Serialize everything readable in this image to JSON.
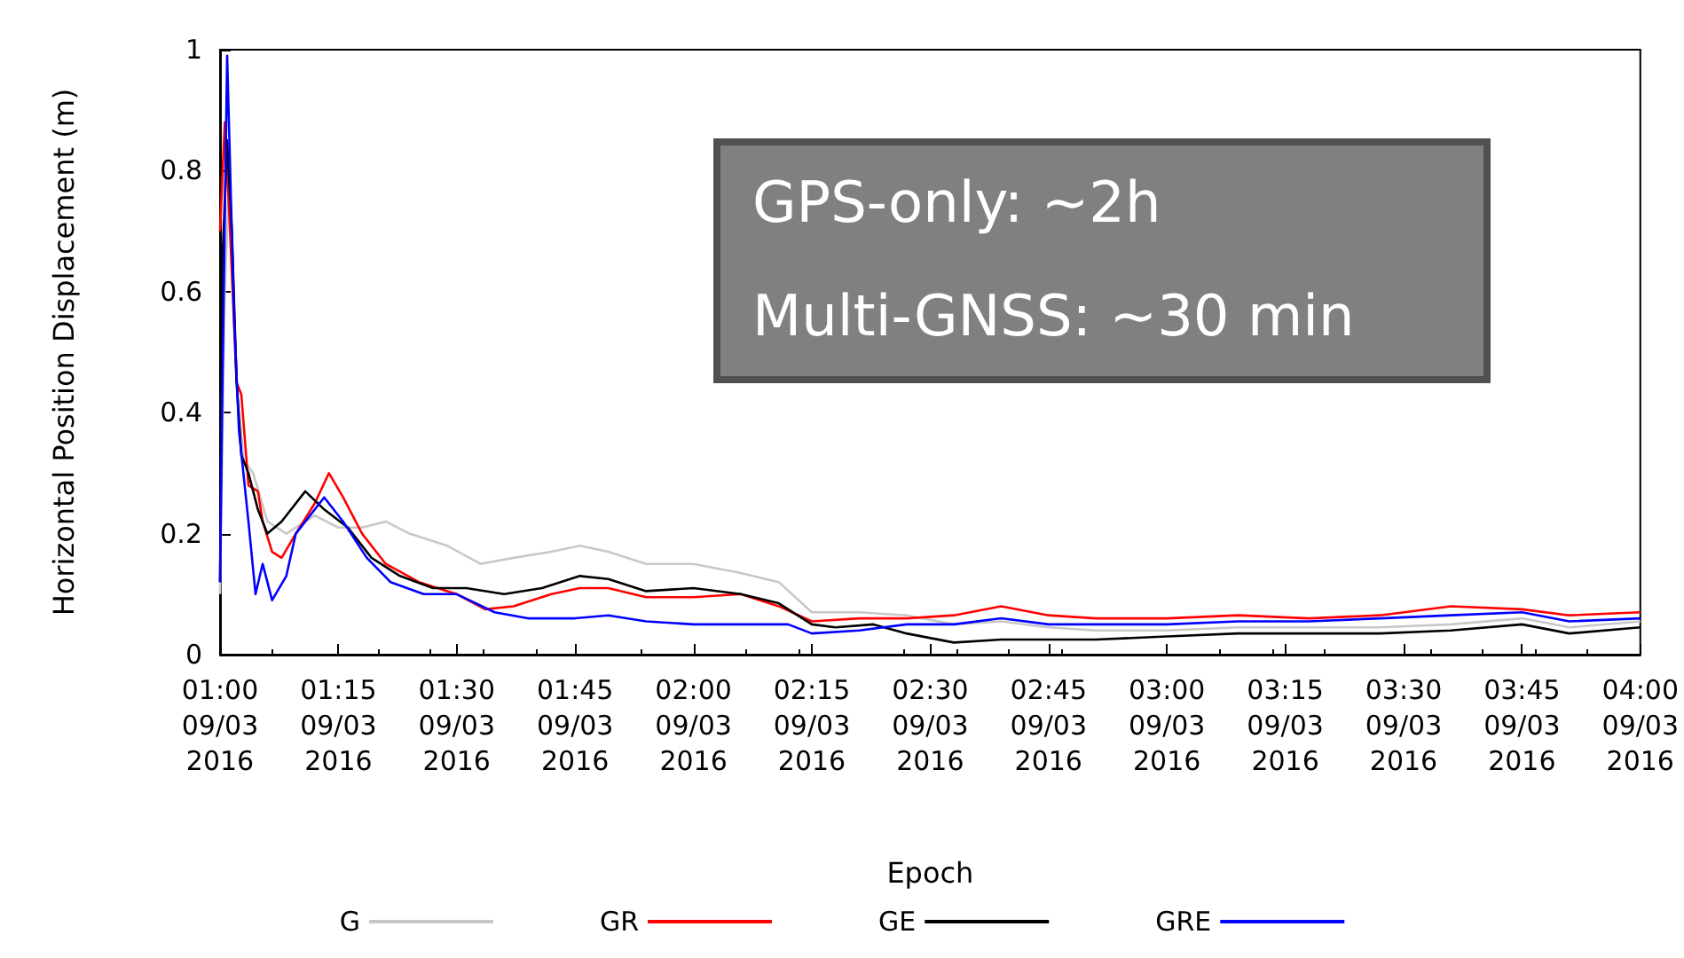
{
  "chart_data": {
    "type": "line",
    "xlabel": "Epoch",
    "ylabel": "Horizontal Position Displacement (m)",
    "xlim": [
      "2016-03-09T01:00",
      "2016-03-09T04:00"
    ],
    "ylim": [
      0,
      1
    ],
    "xticks": [
      {
        "value": "2016-03-09T01:00",
        "label": "01:00\n09/03\n2016"
      },
      {
        "value": "2016-03-09T01:15",
        "label": "01:15\n09/03\n2016"
      },
      {
        "value": "2016-03-09T01:30",
        "label": "01:30\n09/03\n2016"
      },
      {
        "value": "2016-03-09T01:45",
        "label": "01:45\n09/03\n2016"
      },
      {
        "value": "2016-03-09T02:00",
        "label": "02:00\n09/03\n2016"
      },
      {
        "value": "2016-03-09T02:15",
        "label": "02:15\n09/03\n2016"
      },
      {
        "value": "2016-03-09T02:30",
        "label": "02:30\n09/03\n2016"
      },
      {
        "value": "2016-03-09T02:45",
        "label": "02:45\n09/03\n2016"
      },
      {
        "value": "2016-03-09T03:00",
        "label": "03:00\n09/03\n2016"
      },
      {
        "value": "2016-03-09T03:15",
        "label": "03:15\n09/03\n2016"
      },
      {
        "value": "2016-03-09T03:30",
        "label": "03:30\n09/03\n2016"
      },
      {
        "value": "2016-03-09T03:45",
        "label": "03:45\n09/03\n2016"
      },
      {
        "value": "2016-03-09T04:00",
        "label": "04:00\n09/03\n2016"
      }
    ],
    "yticks": [
      0,
      0.2,
      0.4,
      0.6,
      0.8,
      1
    ],
    "grid": false,
    "legend": "bottom",
    "marker": "none",
    "line_style": "solid",
    "annotations": [
      "GPS-only: ~2h",
      "Multi-GNSS: ~30 min"
    ],
    "series": [
      {
        "name": "G",
        "color": "#c8c8c8",
        "x": [
          "2016-03-09T01:00:00",
          "2016-03-09T01:00:36",
          "2016-03-09T01:01:12",
          "2016-03-09T01:02:06",
          "2016-03-09T01:03:00",
          "2016-03-09T01:04:12",
          "2016-03-09T01:06:00",
          "2016-03-09T01:08:24",
          "2016-03-09T01:12:00",
          "2016-03-09T01:15:00",
          "2016-03-09T01:18:00",
          "2016-03-09T01:21:00",
          "2016-03-09T01:24:00",
          "2016-03-09T01:28:48",
          "2016-03-09T01:33:00",
          "2016-03-09T01:37:12",
          "2016-03-09T01:42:00",
          "2016-03-09T01:45:36",
          "2016-03-09T01:49:12",
          "2016-03-09T01:54:00",
          "2016-03-09T02:00:00",
          "2016-03-09T02:06:00",
          "2016-03-09T02:10:48",
          "2016-03-09T02:15:00",
          "2016-03-09T02:21:00",
          "2016-03-09T02:27:00",
          "2016-03-09T02:33:00",
          "2016-03-09T02:39:00",
          "2016-03-09T02:45:00",
          "2016-03-09T02:51:00",
          "2016-03-09T03:00:00",
          "2016-03-09T03:09:00",
          "2016-03-09T03:18:00",
          "2016-03-09T03:27:00",
          "2016-03-09T03:36:00",
          "2016-03-09T03:45:00",
          "2016-03-09T03:51:00",
          "2016-03-09T04:00:00"
        ],
        "values": [
          0.1,
          0.6,
          0.8,
          0.45,
          0.32,
          0.3,
          0.22,
          0.2,
          0.23,
          0.21,
          0.21,
          0.22,
          0.2,
          0.18,
          0.15,
          0.16,
          0.17,
          0.18,
          0.17,
          0.15,
          0.15,
          0.135,
          0.12,
          0.07,
          0.07,
          0.065,
          0.05,
          0.055,
          0.045,
          0.04,
          0.04,
          0.045,
          0.045,
          0.045,
          0.05,
          0.06,
          0.045,
          0.055
        ]
      },
      {
        "name": "GR",
        "color": "#ff0000",
        "x": [
          "2016-03-09T01:00:00",
          "2016-03-09T01:00:36",
          "2016-03-09T01:01:12",
          "2016-03-09T01:02:06",
          "2016-03-09T01:02:42",
          "2016-03-09T01:03:36",
          "2016-03-09T01:04:48",
          "2016-03-09T01:05:24",
          "2016-03-09T01:06:36",
          "2016-03-09T01:07:48",
          "2016-03-09T01:09:36",
          "2016-03-09T01:12:00",
          "2016-03-09T01:13:48",
          "2016-03-09T01:15:36",
          "2016-03-09T01:18:00",
          "2016-03-09T01:21:00",
          "2016-03-09T01:25:12",
          "2016-03-09T01:30:00",
          "2016-03-09T01:33:36",
          "2016-03-09T01:37:12",
          "2016-03-09T01:42:00",
          "2016-03-09T01:45:36",
          "2016-03-09T01:49:12",
          "2016-03-09T01:54:00",
          "2016-03-09T02:00:00",
          "2016-03-09T02:06:00",
          "2016-03-09T02:10:48",
          "2016-03-09T02:15:00",
          "2016-03-09T02:21:00",
          "2016-03-09T02:27:00",
          "2016-03-09T02:33:00",
          "2016-03-09T02:39:00",
          "2016-03-09T02:45:00",
          "2016-03-09T02:51:00",
          "2016-03-09T03:00:00",
          "2016-03-09T03:09:00",
          "2016-03-09T03:18:00",
          "2016-03-09T03:27:00",
          "2016-03-09T03:36:00",
          "2016-03-09T03:45:00",
          "2016-03-09T03:51:00",
          "2016-03-09T04:00:00"
        ],
        "values": [
          0.7,
          0.88,
          0.72,
          0.45,
          0.43,
          0.28,
          0.27,
          0.22,
          0.17,
          0.16,
          0.2,
          0.25,
          0.3,
          0.26,
          0.2,
          0.15,
          0.12,
          0.1,
          0.075,
          0.08,
          0.1,
          0.11,
          0.11,
          0.095,
          0.095,
          0.1,
          0.08,
          0.055,
          0.06,
          0.06,
          0.065,
          0.08,
          0.065,
          0.06,
          0.06,
          0.065,
          0.06,
          0.065,
          0.08,
          0.075,
          0.065,
          0.07
        ]
      },
      {
        "name": "GE",
        "color": "#000000",
        "x": [
          "2016-03-09T01:00:00",
          "2016-03-09T01:00:18",
          "2016-03-09T01:00:54",
          "2016-03-09T01:01:30",
          "2016-03-09T01:02:06",
          "2016-03-09T01:02:42",
          "2016-03-09T01:03:36",
          "2016-03-09T01:04:48",
          "2016-03-09T01:06:00",
          "2016-03-09T01:07:48",
          "2016-03-09T01:10:48",
          "2016-03-09T01:13:12",
          "2016-03-09T01:16:12",
          "2016-03-09T01:19:12",
          "2016-03-09T01:22:48",
          "2016-03-09T01:27:00",
          "2016-03-09T01:31:12",
          "2016-03-09T01:36:00",
          "2016-03-09T01:40:48",
          "2016-03-09T01:45:36",
          "2016-03-09T01:49:12",
          "2016-03-09T01:54:00",
          "2016-03-09T02:00:00",
          "2016-03-09T02:06:00",
          "2016-03-09T02:10:48",
          "2016-03-09T02:15:00",
          "2016-03-09T02:18:00",
          "2016-03-09T02:22:48",
          "2016-03-09T02:27:00",
          "2016-03-09T02:33:00",
          "2016-03-09T02:39:00",
          "2016-03-09T02:45:00",
          "2016-03-09T02:51:00",
          "2016-03-09T03:00:00",
          "2016-03-09T03:09:00",
          "2016-03-09T03:18:00",
          "2016-03-09T03:27:00",
          "2016-03-09T03:36:00",
          "2016-03-09T03:45:00",
          "2016-03-09T03:51:00",
          "2016-03-09T04:00:00"
        ],
        "values": [
          0.12,
          0.65,
          0.85,
          0.7,
          0.45,
          0.33,
          0.3,
          0.24,
          0.2,
          0.22,
          0.27,
          0.24,
          0.21,
          0.16,
          0.13,
          0.11,
          0.11,
          0.1,
          0.11,
          0.13,
          0.125,
          0.105,
          0.11,
          0.1,
          0.085,
          0.05,
          0.045,
          0.05,
          0.035,
          0.02,
          0.025,
          0.025,
          0.025,
          0.03,
          0.035,
          0.035,
          0.035,
          0.04,
          0.05,
          0.035,
          0.045
        ]
      },
      {
        "name": "GRE",
        "color": "#0000ff",
        "x": [
          "2016-03-09T01:00:00",
          "2016-03-09T01:00:18",
          "2016-03-09T01:00:54",
          "2016-03-09T01:01:48",
          "2016-03-09T01:02:24",
          "2016-03-09T01:03:36",
          "2016-03-09T01:04:30",
          "2016-03-09T01:05:24",
          "2016-03-09T01:06:36",
          "2016-03-09T01:08:24",
          "2016-03-09T01:09:36",
          "2016-03-09T01:13:12",
          "2016-03-09T01:15:36",
          "2016-03-09T01:18:36",
          "2016-03-09T01:21:36",
          "2016-03-09T01:25:48",
          "2016-03-09T01:30:00",
          "2016-03-09T01:34:48",
          "2016-03-09T01:39:00",
          "2016-03-09T01:45:00",
          "2016-03-09T01:49:12",
          "2016-03-09T01:54:00",
          "2016-03-09T02:00:00",
          "2016-03-09T02:06:00",
          "2016-03-09T02:12:00",
          "2016-03-09T02:15:00",
          "2016-03-09T02:21:00",
          "2016-03-09T02:27:00",
          "2016-03-09T02:33:00",
          "2016-03-09T02:39:00",
          "2016-03-09T02:45:00",
          "2016-03-09T02:51:00",
          "2016-03-09T03:00:00",
          "2016-03-09T03:09:00",
          "2016-03-09T03:18:00",
          "2016-03-09T03:27:00",
          "2016-03-09T03:36:00",
          "2016-03-09T03:45:00",
          "2016-03-09T03:51:00",
          "2016-03-09T04:00:00"
        ],
        "values": [
          0.12,
          0.44,
          0.99,
          0.55,
          0.37,
          0.22,
          0.1,
          0.15,
          0.09,
          0.13,
          0.2,
          0.26,
          0.22,
          0.16,
          0.12,
          0.1,
          0.1,
          0.07,
          0.06,
          0.06,
          0.065,
          0.055,
          0.05,
          0.05,
          0.05,
          0.035,
          0.04,
          0.05,
          0.05,
          0.06,
          0.05,
          0.05,
          0.05,
          0.055,
          0.055,
          0.06,
          0.065,
          0.07,
          0.055,
          0.06
        ]
      }
    ]
  }
}
